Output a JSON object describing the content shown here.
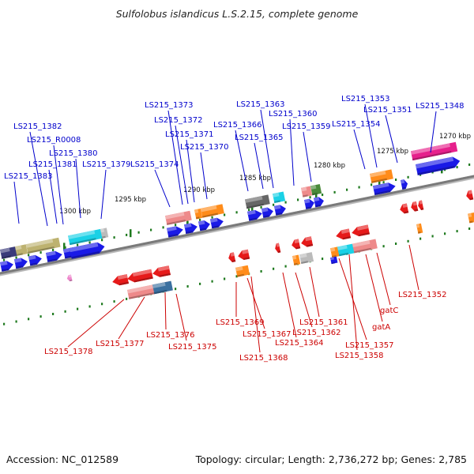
{
  "title": "Sulfolobus islandicus L.S.2.15, complete genome",
  "footer": {
    "accession_label": "Accession:",
    "accession_value": "NC_012589",
    "topology_label": "Topology:",
    "topology_value": "circular",
    "length_label": "Length:",
    "length_value": "2,736,272 bp",
    "genes_label": "Genes:",
    "genes_value": "2,785"
  },
  "colors": {
    "backbone": "#7a7a7a",
    "tick": "#1f7a1f",
    "label_forward": "#0000cc",
    "label_reverse": "#cc0000",
    "label_rna": "#33bbee",
    "leader_forward": "#0000cc",
    "leader_reverse": "#cc0000",
    "leader_rna": "#33bbee"
  },
  "map": {
    "scale_labels": [
      "1300 kbp",
      "1295 kbp",
      "1290 kbp",
      "1285 kbp",
      "1280 kbp",
      "1275 kbp",
      "1270 kbp"
    ],
    "forward_labels": [
      "LS215_1383",
      "LS215_1382",
      "LS215_R0008",
      "LS215_1381",
      "LS215_1380",
      "LS215_1379",
      "LS215_1374",
      "LS215_1373",
      "LS215_1372",
      "LS215_1371",
      "LS215_1370",
      "LS215_1366",
      "LS215_1365",
      "LS215_1363",
      "LS215_1360",
      "LS215_1359",
      "LS215_1354",
      "LS215_1353",
      "LS215_1351",
      "LS215_1348"
    ],
    "reverse_labels": [
      "LS215_1378",
      "LS215_1377",
      "LS215_1376",
      "LS215_1375",
      "LS215_1369",
      "LS215_1367",
      "LS215_1368",
      "LS215_1364",
      "LS215_1362",
      "LS215_1361",
      "LS215_1357",
      "LS215_1358",
      "gatA",
      "gatC",
      "LS215_1352"
    ]
  }
}
